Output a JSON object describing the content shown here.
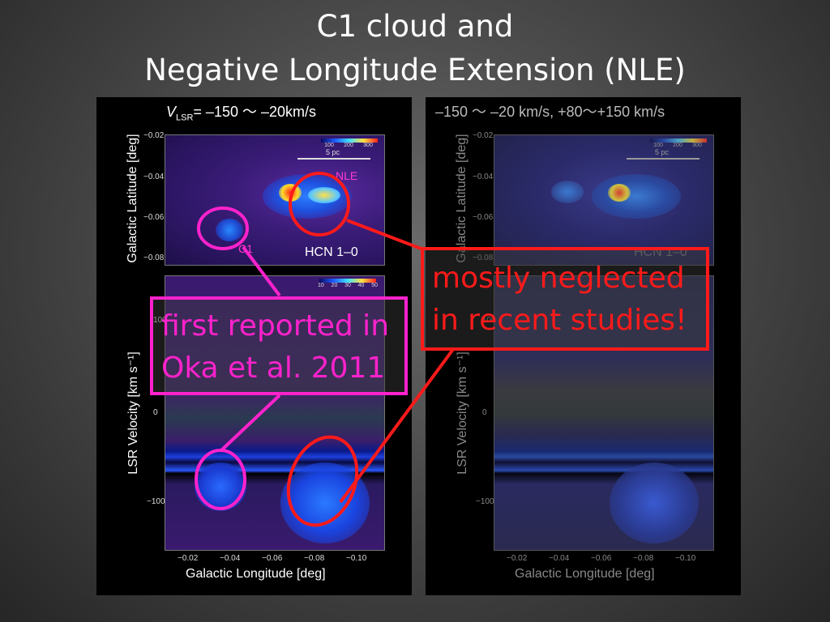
{
  "title": {
    "line1": "C1 cloud and",
    "line2": "Negative Longitude Extension (NLE)"
  },
  "left_panel": {
    "vlsr_prefix": "V",
    "vlsr_subscript": "LSR",
    "vlsr_range": "= –150 〜 –20km/s",
    "top_map": {
      "ylabel": "Galactic Latitude  [deg]",
      "yticks": [
        "−0.02",
        "−0.04",
        "−0.06",
        "−0.08"
      ],
      "scale_label": "5 pc",
      "colorbar_ticks": [
        "100",
        "200",
        "300"
      ],
      "nle_label": "NLE",
      "c1_label": "C1",
      "line_label": "HCN 1–0"
    },
    "bottom_map": {
      "ylabel": "LSR Velocity  [km s⁻¹]",
      "yticks": [
        "100",
        "0",
        "−100"
      ],
      "colorbar_ticks": [
        "10",
        "20",
        "30",
        "40",
        "50"
      ],
      "xlabel": "Galactic Longitude  [deg]",
      "xticks": [
        "−0.02",
        "−0.04",
        "−0.06",
        "−0.08",
        "−0.10"
      ]
    }
  },
  "right_panel": {
    "header": "–150 〜 –20 km/s, +80〜+150 km/s",
    "top_map": {
      "ylabel": "Galactic Latitude  [deg]",
      "yticks": [
        "−0.02",
        "−0.04",
        "−0.06",
        "−0.08"
      ],
      "scale_label": "5 pc",
      "colorbar_ticks": [
        "100",
        "200",
        "300"
      ],
      "line_label": "HCN 1–0"
    },
    "bottom_map": {
      "ylabel": "LSR Velocity  [km s⁻¹]",
      "yticks": [
        "100",
        "0",
        "−100"
      ],
      "xlabel": "Galactic Longitude  [deg]",
      "xticks": [
        "−0.02",
        "−0.04",
        "−0.06",
        "−0.08",
        "−0.10"
      ]
    }
  },
  "callouts": {
    "pink": {
      "line1": "first reported in",
      "line2": "Oka et al. 2011",
      "color": "#ff22cc"
    },
    "red": {
      "line1": "mostly neglected",
      "line2": "in recent studies!",
      "color": "#ff1a1a"
    }
  },
  "colors": {
    "annotation_pink": "#ff22cc",
    "annotation_red": "#ff1a1a",
    "emission_blue": "#1e5cff",
    "background_purple": "#3a1a6e"
  }
}
